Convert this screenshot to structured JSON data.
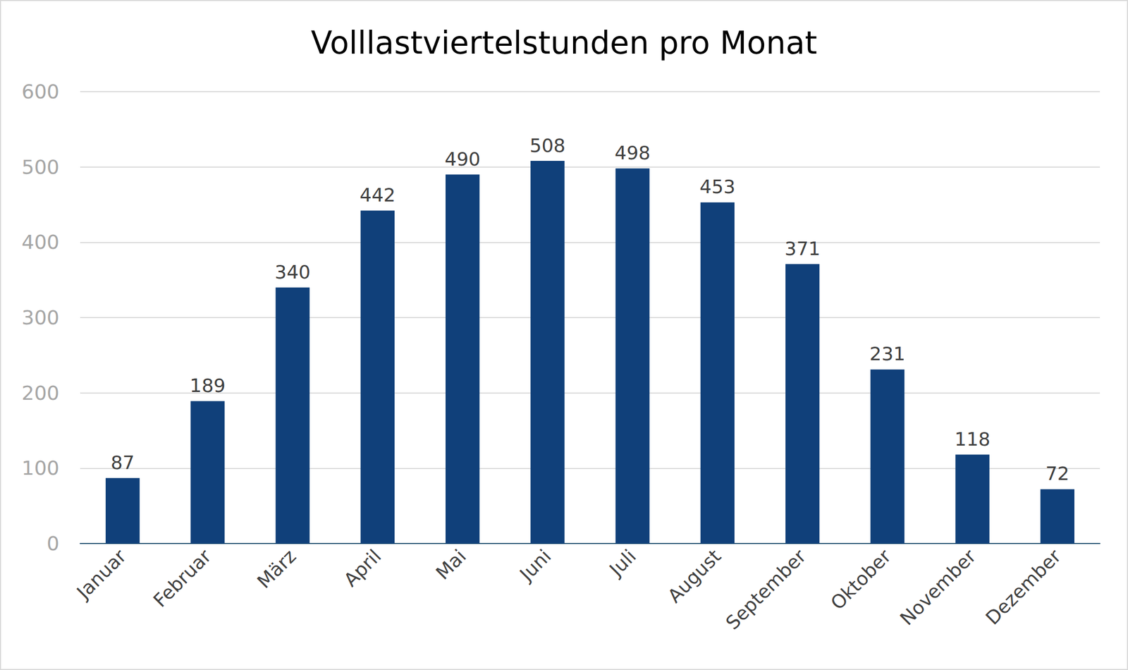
{
  "chart_data": {
    "type": "bar",
    "title": "Volllastviertelstunden pro Monat",
    "categories": [
      "Januar",
      "Februar",
      "März",
      "April",
      "Mai",
      "Juni",
      "Juli",
      "August",
      "September",
      "Oktober",
      "November",
      "Dezember"
    ],
    "values": [
      87,
      189,
      340,
      442,
      490,
      508,
      498,
      453,
      371,
      231,
      118,
      72
    ],
    "color": "#10407a",
    "ylim": [
      0,
      600
    ],
    "yticks": [
      0,
      100,
      200,
      300,
      400,
      500,
      600
    ],
    "grid": true,
    "data_labels": true
  }
}
